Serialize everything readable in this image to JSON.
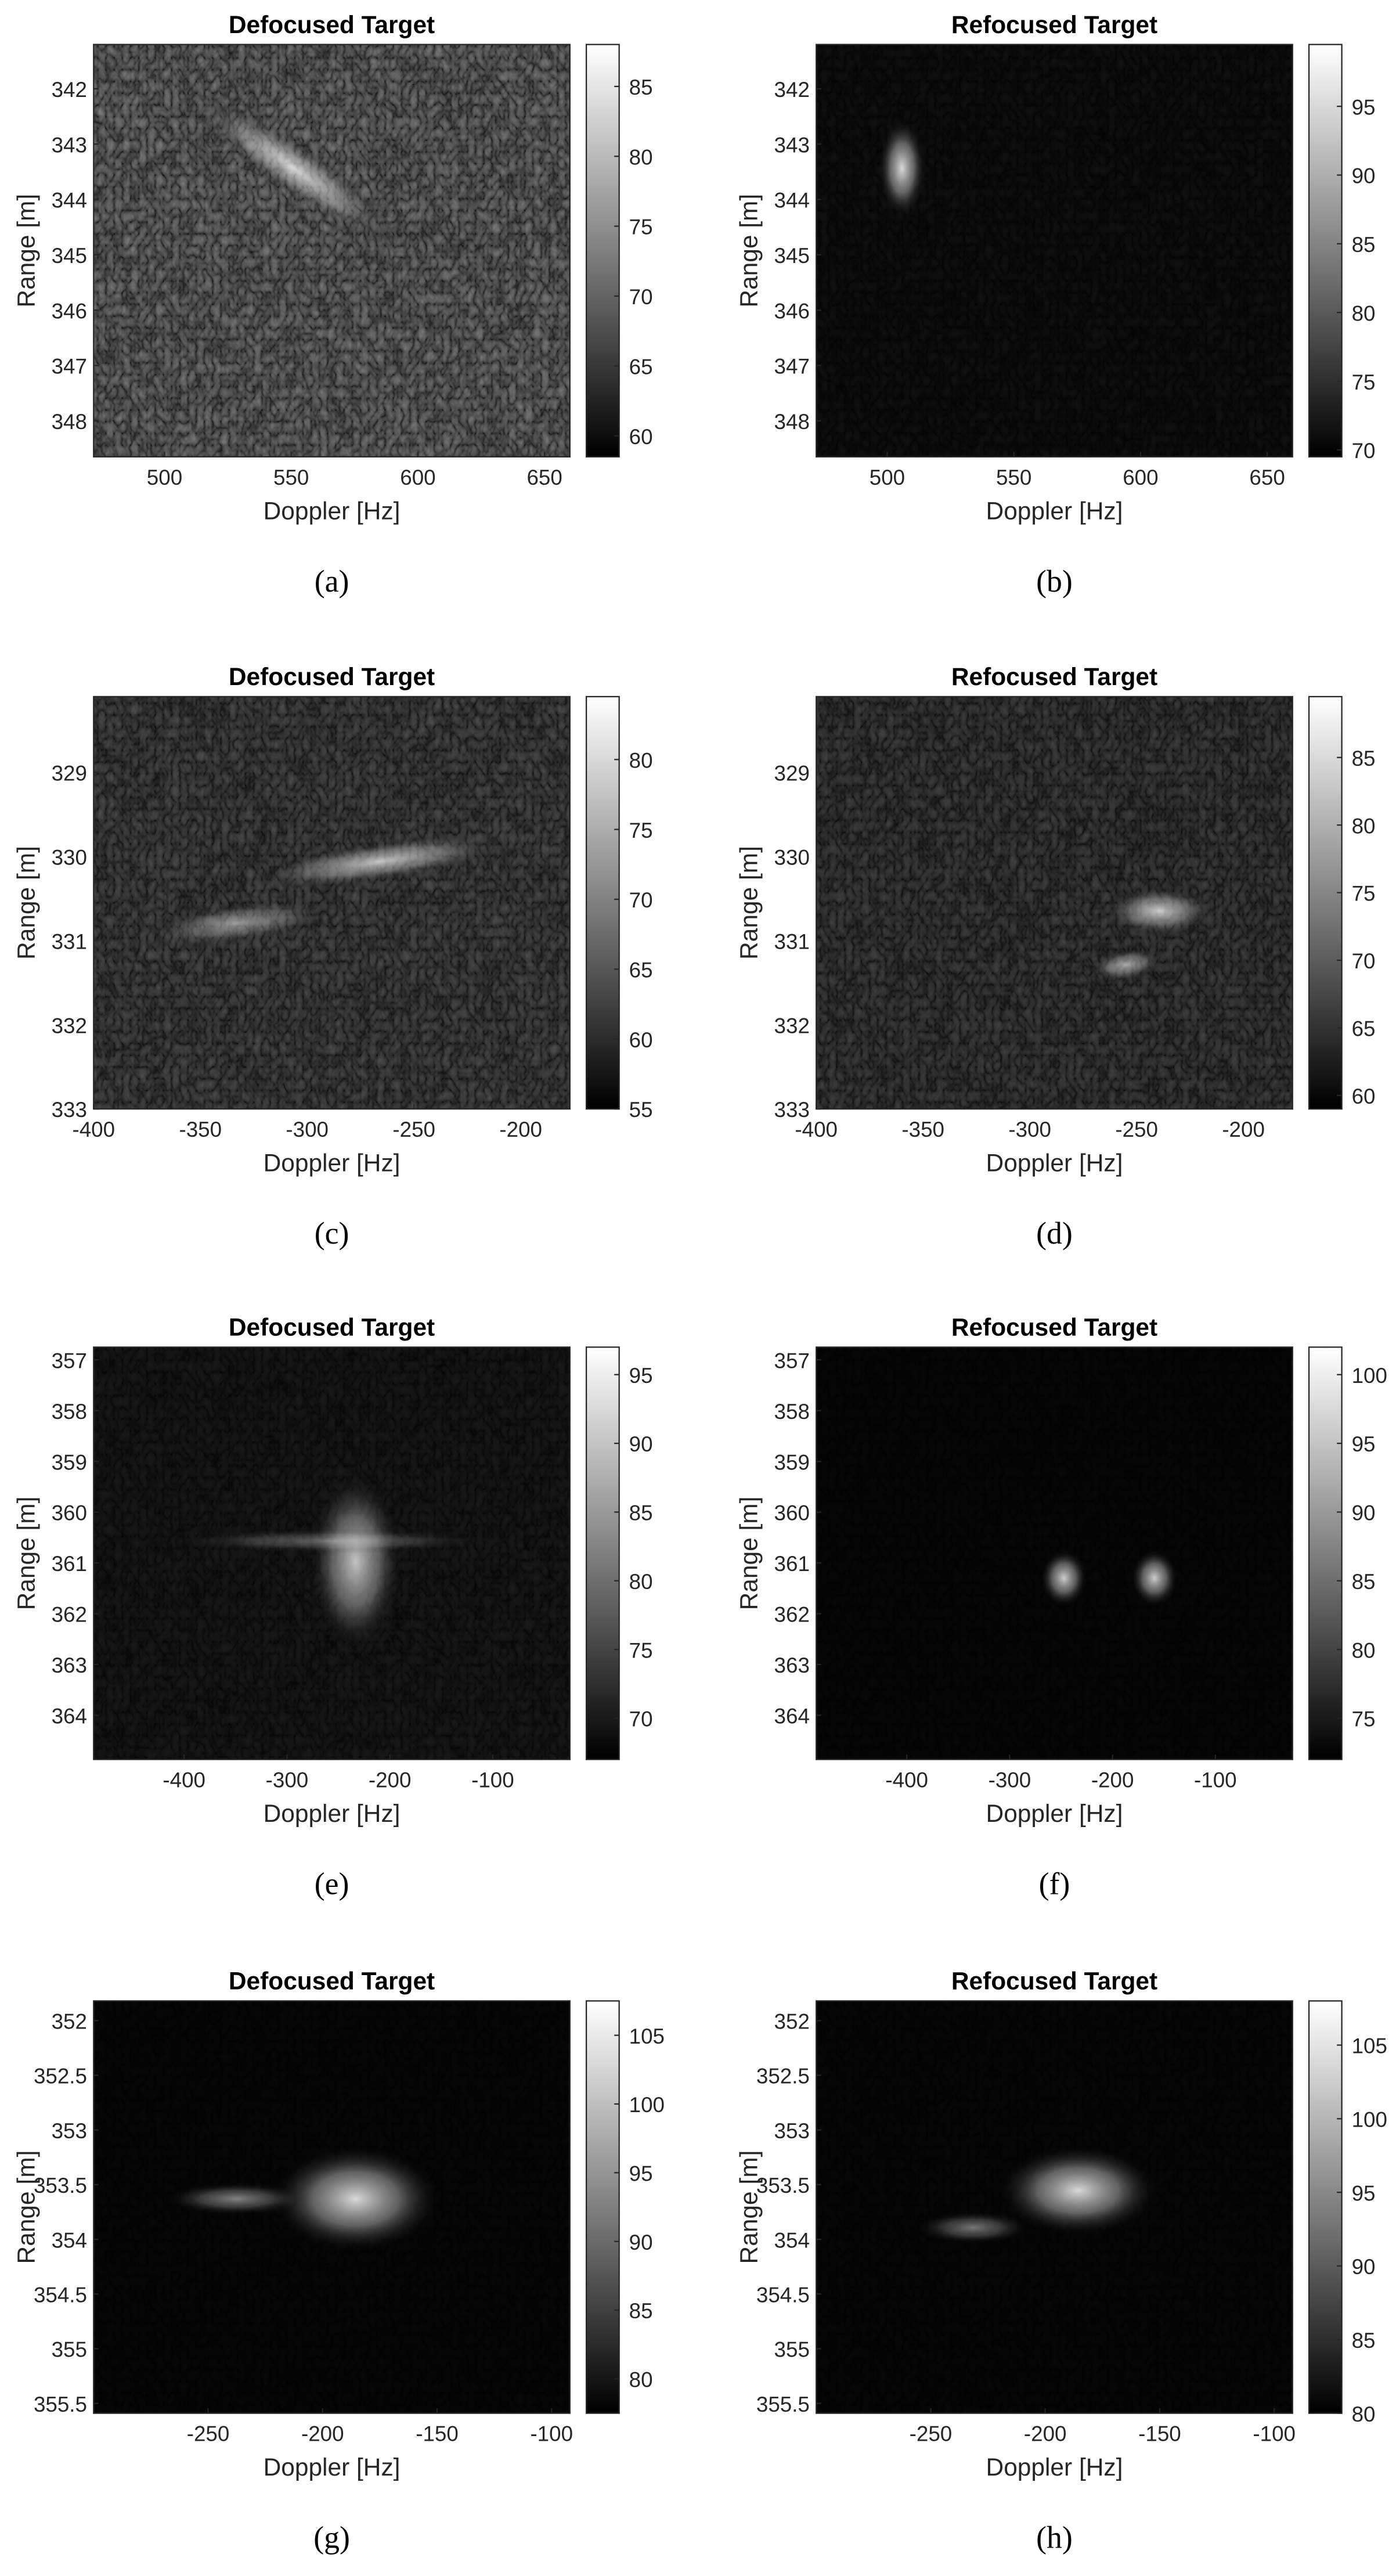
{
  "chart_data": [
    {
      "type": "heatmap",
      "title": "Defocused Target",
      "xlabel": "Doppler [Hz]",
      "ylabel": "Range [m]",
      "caption": "(a)",
      "xlim": [
        472,
        660
      ],
      "xticks": [
        500,
        550,
        600,
        650
      ],
      "ylim": [
        341.2,
        348.65
      ],
      "yticks": [
        342,
        343,
        344,
        345,
        346,
        347,
        348
      ],
      "y_direction": "reverse",
      "clim": [
        58.5,
        88
      ],
      "cticks": [
        60,
        65,
        70,
        75,
        80,
        85
      ],
      "colormap": "gray"
    },
    {
      "type": "heatmap",
      "title": "Refocused Target",
      "xlabel": "Doppler [Hz]",
      "ylabel": "Range [m]",
      "caption": "(b)",
      "xlim": [
        472,
        660
      ],
      "xticks": [
        500,
        550,
        600,
        650
      ],
      "ylim": [
        341.2,
        348.65
      ],
      "yticks": [
        342,
        343,
        344,
        345,
        346,
        347,
        348
      ],
      "y_direction": "reverse",
      "clim": [
        69.5,
        99.5
      ],
      "cticks": [
        70,
        75,
        80,
        85,
        90,
        95
      ],
      "colormap": "gray"
    },
    {
      "type": "heatmap",
      "title": "Defocused Target",
      "xlabel": "Doppler [Hz]",
      "ylabel": "Range [m]",
      "caption": "(c)",
      "xlim": [
        -400,
        -177
      ],
      "xticks": [
        -400,
        -350,
        -300,
        -250,
        -200
      ],
      "ylim": [
        328.1,
        333
      ],
      "yticks": [
        329,
        330,
        331,
        332,
        333
      ],
      "y_direction": "reverse",
      "clim": [
        55,
        84.5
      ],
      "cticks": [
        55,
        60,
        65,
        70,
        75,
        80
      ],
      "colormap": "gray"
    },
    {
      "type": "heatmap",
      "title": "Refocused Target",
      "xlabel": "Doppler [Hz]",
      "ylabel": "Range [m]",
      "caption": "(d)",
      "xlim": [
        -400,
        -177
      ],
      "xticks": [
        -400,
        -350,
        -300,
        -250,
        -200
      ],
      "ylim": [
        328.1,
        333
      ],
      "yticks": [
        329,
        330,
        331,
        332,
        333
      ],
      "y_direction": "reverse",
      "clim": [
        59,
        89.5
      ],
      "cticks": [
        60,
        65,
        70,
        75,
        80,
        85
      ],
      "colormap": "gray"
    },
    {
      "type": "heatmap",
      "title": "Defocused Target",
      "xlabel": "Doppler [Hz]",
      "ylabel": "Range [m]",
      "caption": "(e)",
      "xlim": [
        -488,
        -25
      ],
      "xticks": [
        -400,
        -300,
        -200,
        -100
      ],
      "ylim": [
        356.75,
        364.87
      ],
      "yticks": [
        357,
        358,
        359,
        360,
        361,
        362,
        363,
        364
      ],
      "y_direction": "reverse",
      "clim": [
        67,
        97
      ],
      "cticks": [
        70,
        75,
        80,
        85,
        90,
        95
      ],
      "colormap": "gray"
    },
    {
      "type": "heatmap",
      "title": "Refocused Target",
      "xlabel": "Doppler [Hz]",
      "ylabel": "Range [m]",
      "caption": "(f)",
      "xlim": [
        -488,
        -25
      ],
      "xticks": [
        -400,
        -300,
        -200,
        -100
      ],
      "ylim": [
        356.75,
        364.87
      ],
      "yticks": [
        357,
        358,
        359,
        360,
        361,
        362,
        363,
        364
      ],
      "y_direction": "reverse",
      "clim": [
        72,
        102
      ],
      "cticks": [
        75,
        80,
        85,
        90,
        95,
        100
      ],
      "colormap": "gray"
    },
    {
      "type": "heatmap",
      "title": "Defocused Target",
      "xlabel": "Doppler [Hz]",
      "ylabel": "Range [m]",
      "caption": "(g)",
      "xlim": [
        -300,
        -92
      ],
      "xticks": [
        -250,
        -200,
        -150,
        -100
      ],
      "ylim": [
        351.82,
        355.59
      ],
      "yticks": [
        352,
        352.5,
        353,
        353.5,
        354,
        354.5,
        355,
        355.5
      ],
      "y_direction": "reverse",
      "clim": [
        77.5,
        107.5
      ],
      "cticks": [
        80,
        85,
        90,
        95,
        100,
        105
      ],
      "colormap": "gray"
    },
    {
      "type": "heatmap",
      "title": "Refocused Target",
      "xlabel": "Doppler [Hz]",
      "ylabel": "Range [m]",
      "caption": "(h)",
      "xlim": [
        -300,
        -92
      ],
      "xticks": [
        -250,
        -200,
        -150,
        -100
      ],
      "ylim": [
        351.82,
        355.59
      ],
      "yticks": [
        352,
        352.5,
        353,
        353.5,
        354,
        354.5,
        355,
        355.5
      ],
      "y_direction": "reverse",
      "clim": [
        80,
        108
      ],
      "cticks": [
        80,
        85,
        90,
        95,
        100,
        105
      ],
      "colormap": "gray"
    }
  ]
}
